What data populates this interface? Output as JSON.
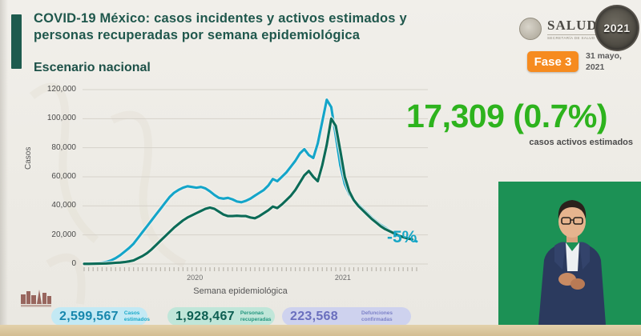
{
  "slide": {
    "title_line1": "COVID-19 México: casos incidentes y activos estimados y",
    "title_line2": "personas recuperadas por semana epidemiológica",
    "subtitle": "Escenario nacional"
  },
  "header_right": {
    "salud_label": "SALUD",
    "salud_sublabel": "SECRETARÍA DE SALUD",
    "commemorative_badge": "2021",
    "phase_badge": "Fase 3",
    "date": "31 mayo,\n2021"
  },
  "highlight": {
    "value": "17,309 (0.7%)",
    "label": "casos activos estimados",
    "color": "#2db31d"
  },
  "annotation": {
    "text": "-5%",
    "color": "#17a6c5"
  },
  "chart_data": {
    "type": "line",
    "title": "Casos incidentes y activos estimados y personas recuperadas por semana epidemiológica",
    "xlabel": "Semana epidemiológica",
    "ylabel": "Casos",
    "ylim": [
      0,
      120000
    ],
    "yticks": [
      0,
      20000,
      40000,
      60000,
      80000,
      100000,
      120000
    ],
    "ytick_labels": [
      "0",
      "20,000",
      "40,000",
      "60,000",
      "80,000",
      "100,000",
      "120,000"
    ],
    "x_year_labels": [
      "2020",
      "2021"
    ],
    "grid": true,
    "legend_position": "none",
    "series": [
      {
        "name": "Casos incidentes estimados",
        "color": "#14a5c9",
        "end_annotation": "-5%",
        "values": [
          300,
          300,
          400,
          600,
          1000,
          1500,
          2500,
          4000,
          6000,
          8500,
          11000,
          14000,
          18000,
          22000,
          26000,
          30000,
          34000,
          38000,
          42000,
          46000,
          49000,
          51000,
          52500,
          53500,
          53000,
          52500,
          53000,
          52000,
          50000,
          47500,
          45500,
          45000,
          45500,
          44500,
          43000,
          42500,
          43500,
          45000,
          47000,
          49000,
          51000,
          54000,
          58500,
          57000,
          60000,
          63000,
          67000,
          71000,
          76000,
          79000,
          75000,
          73000,
          83000,
          98000,
          113000,
          108000,
          88000,
          68000,
          55000,
          48000,
          44000,
          41000,
          38000,
          35000,
          32000,
          29500,
          27000,
          25000,
          23000,
          21500,
          20000,
          18500,
          17500,
          16500,
          15500
        ]
      },
      {
        "name": "Personas recuperadas",
        "color": "#0c6b57",
        "values": [
          100,
          100,
          150,
          200,
          300,
          400,
          600,
          800,
          1000,
          1300,
          1800,
          2500,
          4000,
          5500,
          7500,
          10000,
          13000,
          16000,
          19000,
          22000,
          25000,
          27500,
          30000,
          32000,
          33500,
          35000,
          36500,
          38000,
          38800,
          38000,
          36000,
          34000,
          33000,
          33000,
          33200,
          33000,
          33000,
          32000,
          31500,
          33000,
          35000,
          37000,
          39500,
          38500,
          41000,
          44000,
          47000,
          51000,
          56000,
          61000,
          64000,
          60000,
          57000,
          68000,
          82000,
          100000,
          95000,
          78000,
          60000,
          50000,
          44000,
          40000,
          37000,
          34000,
          31000,
          28500,
          26000,
          24000,
          22500,
          21000,
          19500,
          18500,
          17500,
          17000
        ]
      }
    ]
  },
  "stats": [
    {
      "value": "2,599,567",
      "label": "Casos estimados",
      "bg": "#c3e9f4",
      "value_color": "#1787ad",
      "label_color": "#1aa9c9"
    },
    {
      "value": "1,928,467",
      "label": "Personas recuperadas",
      "bg": "#c0e6d9",
      "value_color": "#0d5f52",
      "label_color": "#23967f"
    },
    {
      "value": "223,568",
      "label": "Defunciones confirmadas",
      "bg": "#ced2ee",
      "value_color": "#6a6fbe",
      "label_color": "#7d82c8"
    }
  ]
}
